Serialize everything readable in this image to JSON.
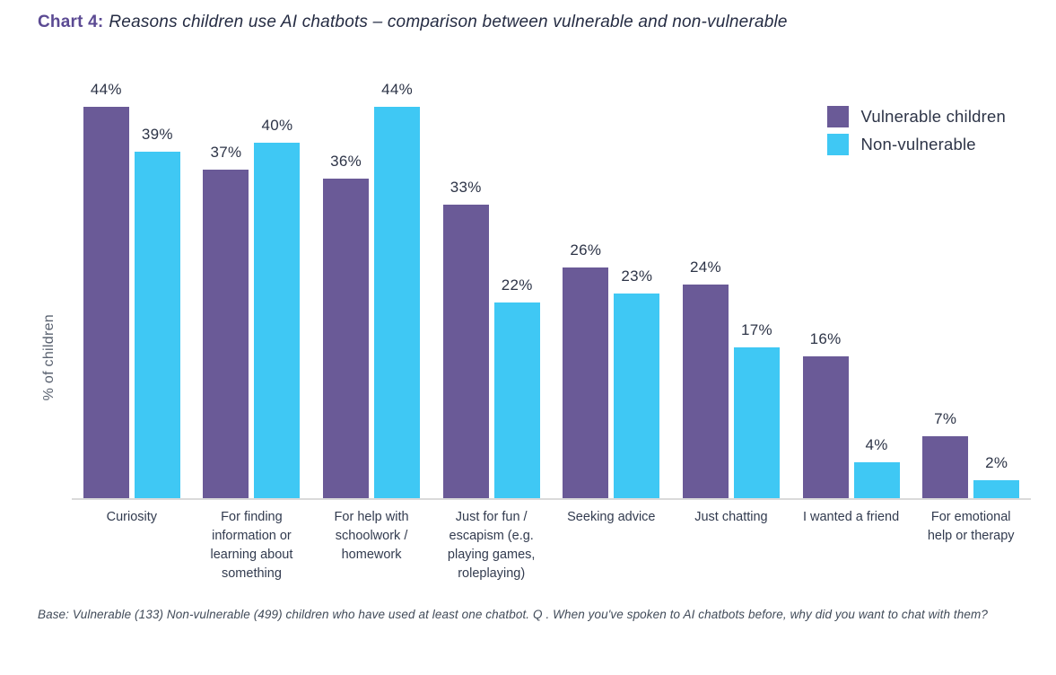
{
  "title": {
    "prefix": "Chart 4:",
    "text": "Reasons children use AI chatbots – comparison between vulnerable and non-vulnerable"
  },
  "note": "Base: Vulnerable (133) Non-vulnerable (499) children who have used at least one chatbot. Q . When you've spoken to AI chatbots before, why did you want to chat with them?",
  "colors": {
    "vulnerable": "#6a5a97",
    "non_vulnerable": "#3fc8f4",
    "title_accent": "#5b4a93",
    "text_dark": "#2d3447",
    "axis_line": "#dadada"
  },
  "chart_data": {
    "type": "bar",
    "title": "Chart 4: Reasons children use AI chatbots – comparison between vulnerable and non-vulnerable",
    "categories": [
      "Curiosity",
      "For finding information or learning about something",
      "For help with schoolwork / homework",
      "Just for fun / escapism (e.g. playing games, roleplaying)",
      "Seeking advice",
      "Just chatting",
      "I wanted a friend",
      "For emotional help or therapy"
    ],
    "series": [
      {
        "name": "Vulnerable children",
        "color": "#6a5a97",
        "values": [
          44,
          37,
          36,
          33,
          26,
          24,
          16,
          7
        ]
      },
      {
        "name": "Non-vulnerable",
        "color": "#3fc8f4",
        "values": [
          39,
          40,
          44,
          22,
          23,
          17,
          4,
          2
        ]
      }
    ],
    "xlabel": "",
    "ylabel": "% of children",
    "value_suffix": "%",
    "ylim": [
      0,
      48
    ],
    "grid": false,
    "data_labels": true,
    "legend_position": "top-right"
  }
}
